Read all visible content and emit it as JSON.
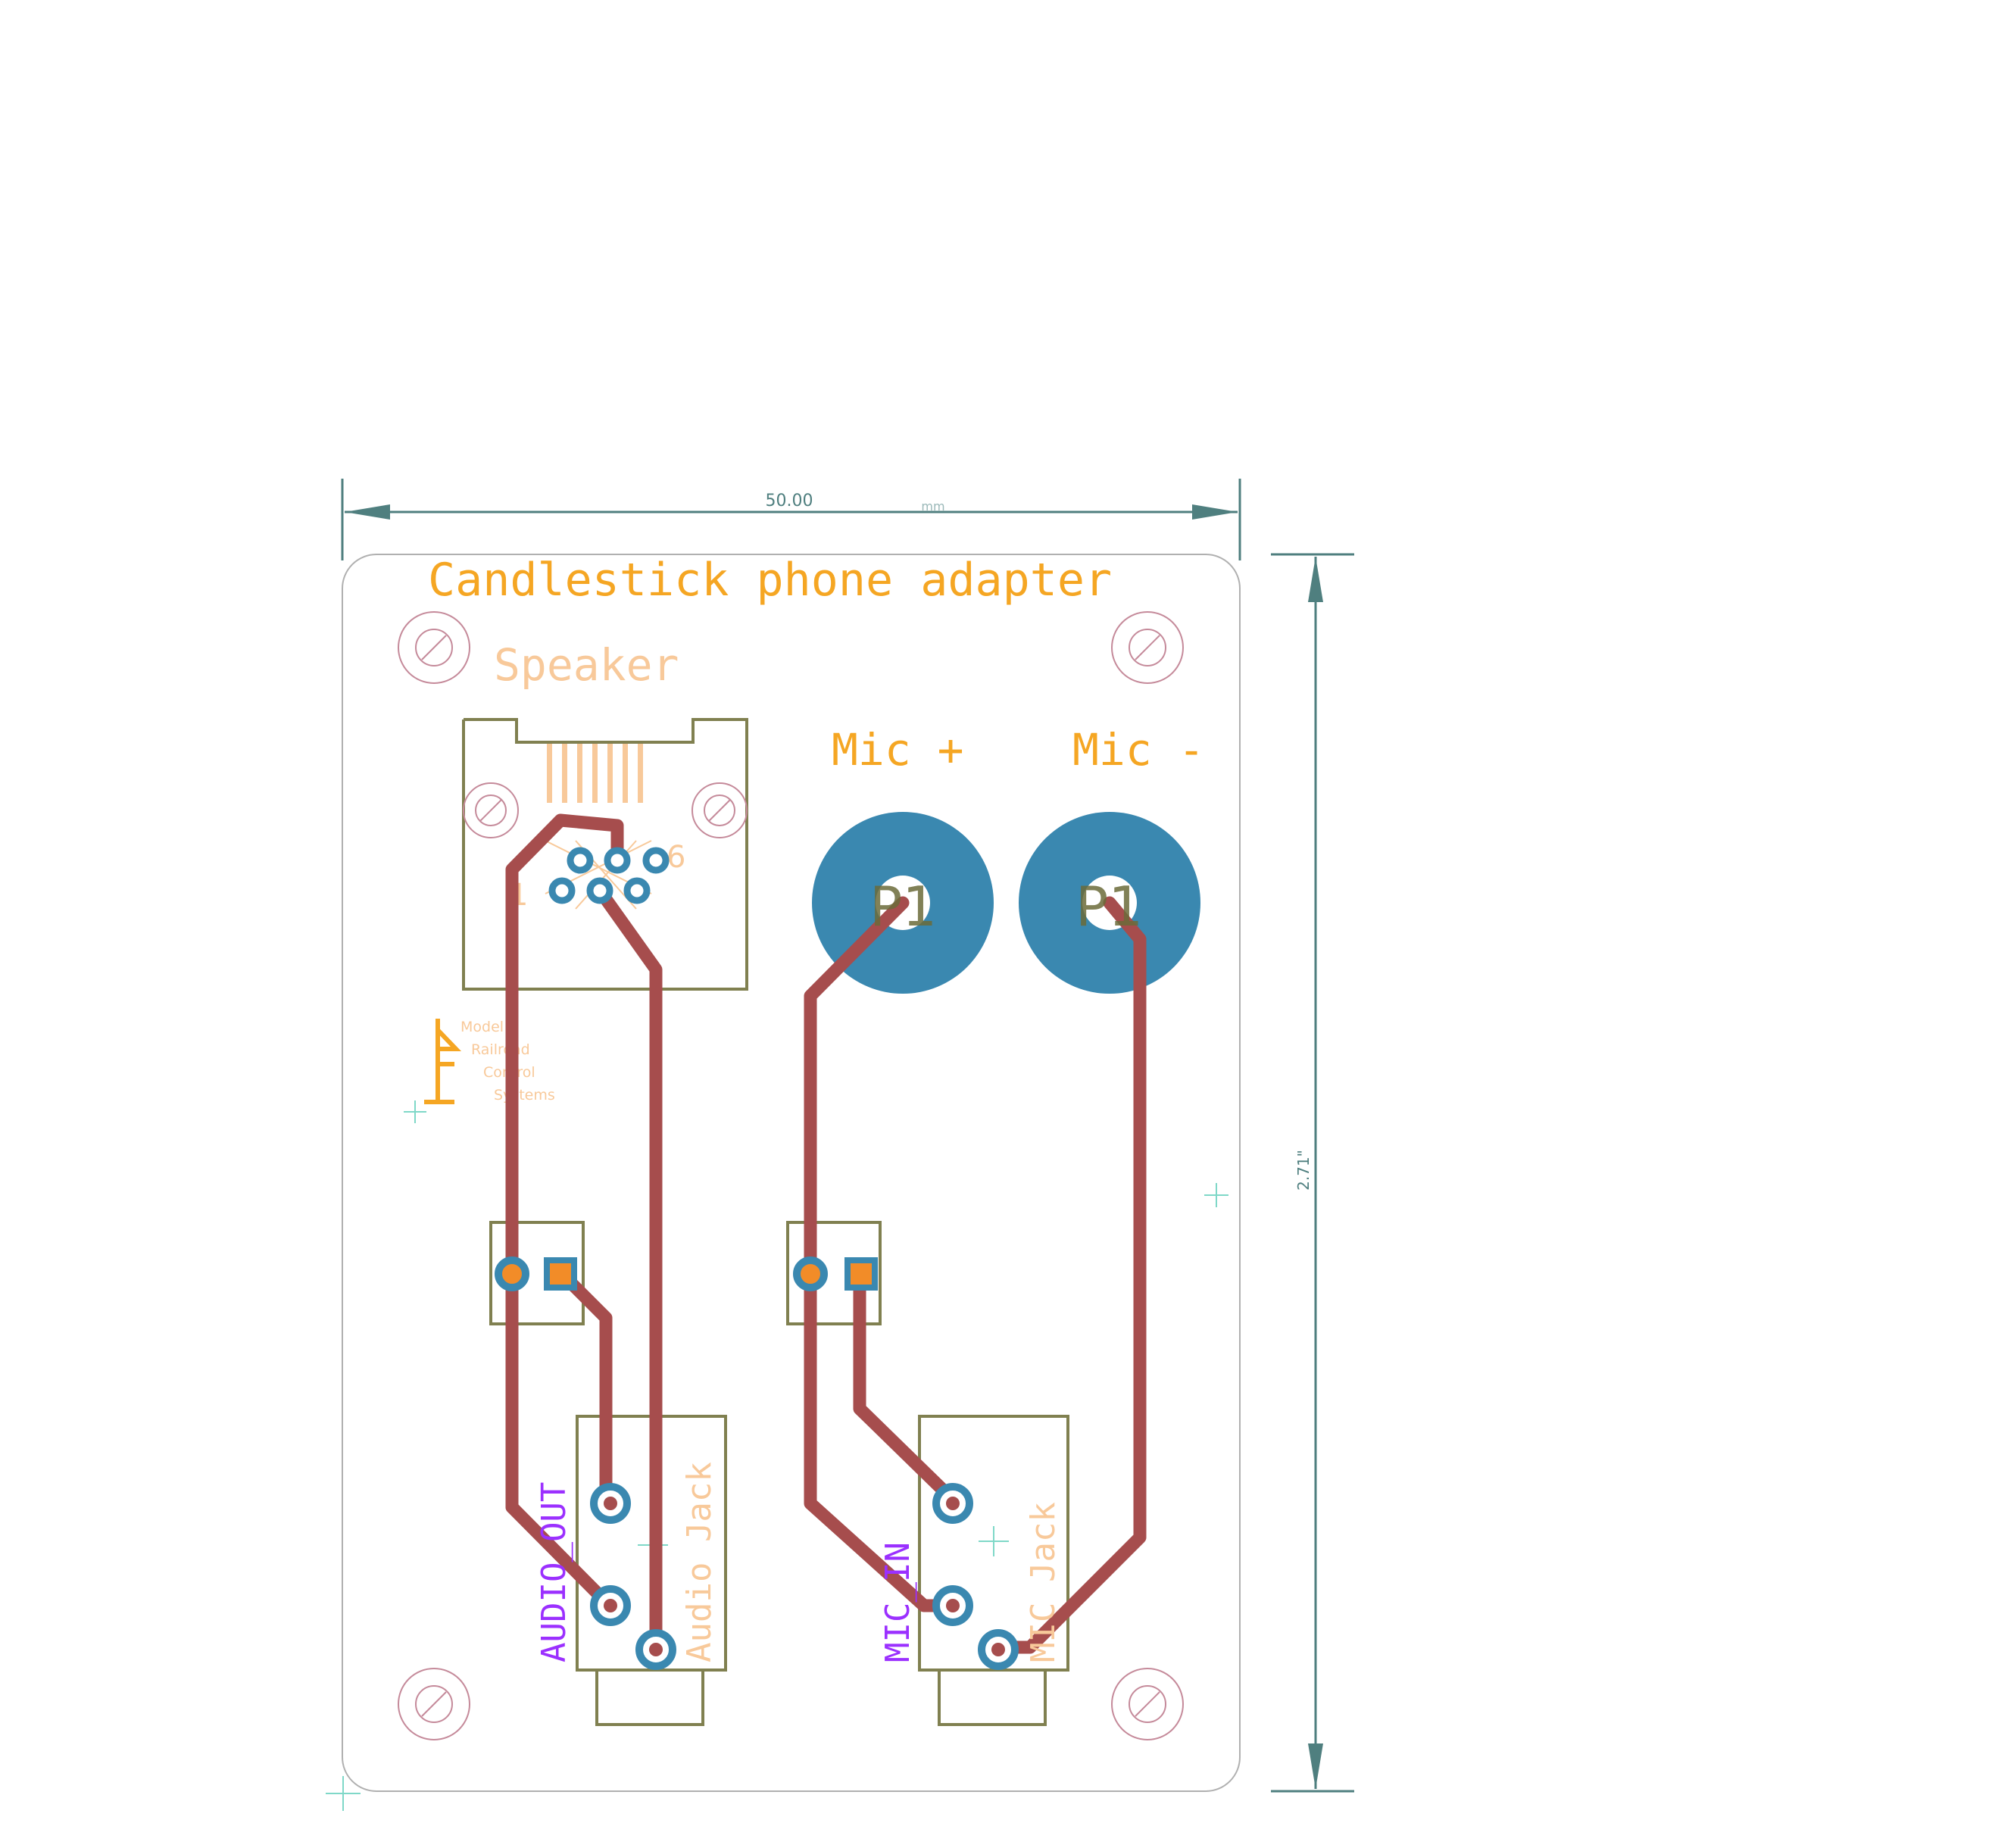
{
  "board": {
    "title": "Candlestick phone adapter",
    "dim_width_value": "50.00",
    "dim_width_unit": "mm",
    "dim_height_value": "2.71\""
  },
  "labels": {
    "speaker": "Speaker",
    "mic_plus": "Mic +",
    "mic_minus": "Mic -",
    "pad_left": "P1",
    "pad_right": "P1",
    "rj_pin1": "1",
    "rj_pin6": "6",
    "audio_out": "AUDIO_OUT",
    "audio_jack": "Audio Jack",
    "mic_in": "MIC_IN",
    "mic_jack": "MIC Jack"
  },
  "logo": {
    "line1": "Model",
    "line2": "Railroad",
    "line3": "Control",
    "line4": "Systems"
  },
  "colors": {
    "outline": "#b0b0b0",
    "dimension": "#4f7f7f",
    "silk_orange": "#f5a623",
    "silk_light": "#f8c99a",
    "trace": "#a64d4d",
    "pad": "#3a88b0",
    "footprint": "#808050",
    "net_label": "#9b30ff",
    "hole": "#c58a9a",
    "origin": "#7fd8c8"
  }
}
